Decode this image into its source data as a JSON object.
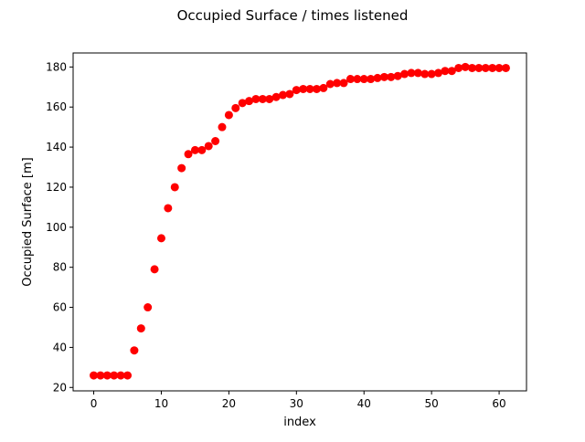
{
  "chart_data": {
    "type": "scatter",
    "title": "Occupied Surface / times listened",
    "xlabel": "index",
    "ylabel": "Occupied Surface [m]",
    "xlim": [
      -3.05,
      64.05
    ],
    "ylim": [
      18.3,
      187.0
    ],
    "x_ticks": [
      0,
      10,
      20,
      30,
      40,
      50,
      60
    ],
    "y_ticks": [
      20,
      40,
      60,
      80,
      100,
      120,
      140,
      160,
      180
    ],
    "marker_color": "#ff0000",
    "grid": false,
    "legend": "none",
    "series": [
      {
        "x": [
          0,
          1,
          2,
          3,
          4,
          5,
          6,
          7,
          8,
          9,
          10,
          11,
          12,
          13,
          14,
          15,
          16,
          17,
          18,
          19,
          20,
          21,
          22,
          23,
          24,
          25,
          26,
          27,
          28,
          29,
          30,
          31,
          32,
          33,
          34,
          35,
          36,
          37,
          38,
          39,
          40,
          41,
          42,
          43,
          44,
          45,
          46,
          47,
          48,
          49,
          50,
          51,
          52,
          53,
          54,
          55,
          56,
          57,
          58,
          59,
          60,
          61
        ],
        "y": [
          26,
          26,
          26,
          26,
          26,
          26,
          38.5,
          49.5,
          60,
          79,
          94.5,
          109.5,
          120,
          129.5,
          136.5,
          138.5,
          138.5,
          140.5,
          143,
          150,
          156,
          159.5,
          162,
          163,
          164,
          164,
          164,
          165,
          166,
          166.5,
          168.5,
          169,
          169,
          169,
          169.5,
          171.5,
          172,
          172,
          174,
          174,
          174,
          174,
          174.5,
          175,
          175,
          175.5,
          176.5,
          177,
          177,
          176.5,
          176.5,
          177,
          178,
          178,
          179.5,
          180,
          179.5,
          179.5,
          179.5,
          179.5,
          179.5,
          179.5
        ]
      }
    ]
  }
}
